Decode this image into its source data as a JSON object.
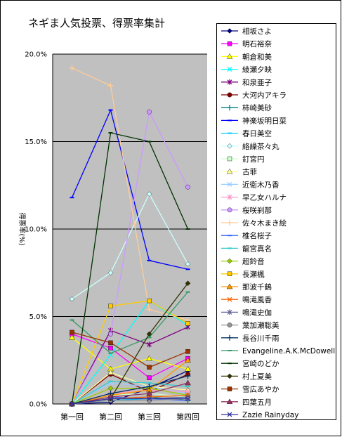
{
  "chart_data": {
    "type": "line",
    "title": "ネギま人気投票、得票率集計",
    "ylabel": "得票率(%)",
    "xlabel": "",
    "categories": [
      "第一回",
      "第二回",
      "第三回",
      "第四回"
    ],
    "ylim": [
      0,
      20
    ],
    "y_ticks": [
      "0.0%",
      "5.0%",
      "10.0%",
      "15.0%",
      "20.0%"
    ],
    "y_tick_values": [
      0,
      5,
      10,
      15,
      20
    ],
    "grid": "horizontal",
    "plot_background": "#c0c0c0",
    "legend_position": "right",
    "series": [
      {
        "name": "相坂さよ",
        "values": [
          0,
          0.1,
          0.9,
          1.9
        ],
        "color": "#000080",
        "marker": "diamond"
      },
      {
        "name": "明石裕奈",
        "values": [
          4.0,
          3.2,
          1.5,
          2.6
        ],
        "color": "#ff00ff",
        "marker": "square"
      },
      {
        "name": "朝倉和美",
        "values": [
          3.8,
          2.0,
          2.6,
          2.0
        ],
        "color": "#ffff00",
        "marker": "triangle"
      },
      {
        "name": "綾瀬夕映",
        "values": [
          0,
          2.8,
          5.9,
          4.5
        ],
        "color": "#00ffff",
        "marker": "x"
      },
      {
        "name": "和泉亜子",
        "values": [
          0,
          4.2,
          3.4,
          4.4
        ],
        "color": "#800080",
        "marker": "star"
      },
      {
        "name": "大河内アキラ",
        "values": [
          0,
          1.7,
          0.7,
          1.7
        ],
        "color": "#800000",
        "marker": "circle"
      },
      {
        "name": "柿崎美砂",
        "values": [
          0,
          0.3,
          0.4,
          0.2
        ],
        "color": "#008080",
        "marker": "plus"
      },
      {
        "name": "神楽坂明日菜",
        "values": [
          11.8,
          16.8,
          8.2,
          7.7
        ],
        "color": "#0000ff",
        "marker": "dash"
      },
      {
        "name": "春日美空",
        "values": [
          0,
          0.2,
          0.3,
          0.3
        ],
        "color": "#00ccff",
        "marker": "dash"
      },
      {
        "name": "絡繰茶々丸",
        "values": [
          6.0,
          7.5,
          12.0,
          8.0
        ],
        "color": "#ccffff",
        "marker": "diamond"
      },
      {
        "name": "釘宮円",
        "values": [
          0,
          0.5,
          0.6,
          0.4
        ],
        "color": "#ccffcc",
        "marker": "square"
      },
      {
        "name": "古菲",
        "values": [
          0,
          1.8,
          1.0,
          0.8
        ],
        "color": "#ffff99",
        "marker": "triangle"
      },
      {
        "name": "近衛木乃香",
        "values": [
          0,
          1.2,
          1.0,
          0.6
        ],
        "color": "#99ccff",
        "marker": "x"
      },
      {
        "name": "早乙女ハルナ",
        "values": [
          0,
          0.6,
          0.8,
          0.7
        ],
        "color": "#ff99cc",
        "marker": "star"
      },
      {
        "name": "桜咲刹那",
        "values": [
          0,
          4.0,
          16.7,
          12.4
        ],
        "color": "#cc99ff",
        "marker": "circle"
      },
      {
        "name": "佐々木まき絵",
        "values": [
          19.2,
          18.2,
          5.4,
          4.8
        ],
        "color": "#ffcc99",
        "marker": "plus"
      },
      {
        "name": "椎名桜子",
        "values": [
          0,
          0.4,
          0.3,
          0.2
        ],
        "color": "#3366ff",
        "marker": "dash"
      },
      {
        "name": "龍宮真名",
        "values": [
          0,
          1.3,
          1.2,
          1.0
        ],
        "color": "#33cccc",
        "marker": "dash"
      },
      {
        "name": "超鈴音",
        "values": [
          0,
          0.9,
          0.9,
          0.5
        ],
        "color": "#99cc00",
        "marker": "diamond"
      },
      {
        "name": "長瀬楓",
        "values": [
          0,
          5.6,
          5.9,
          4.6
        ],
        "color": "#ffcc00",
        "marker": "square"
      },
      {
        "name": "那波千鶴",
        "values": [
          0,
          0.5,
          0.8,
          2.5
        ],
        "color": "#ff9900",
        "marker": "triangle"
      },
      {
        "name": "鳴滝風香",
        "values": [
          0,
          0.3,
          0.4,
          0.5
        ],
        "color": "#ff6600",
        "marker": "x"
      },
      {
        "name": "鳴滝史伽",
        "values": [
          0,
          0.3,
          0.3,
          0.4
        ],
        "color": "#666699",
        "marker": "star"
      },
      {
        "name": "葉加瀬聡美",
        "values": [
          0,
          0.2,
          0.2,
          0.3
        ],
        "color": "#969696",
        "marker": "circle"
      },
      {
        "name": "長谷川千雨",
        "values": [
          0,
          0.6,
          1.0,
          1.6
        ],
        "color": "#003366",
        "marker": "plus"
      },
      {
        "name": "Evangeline.A.K.McDowell",
        "values": [
          4.8,
          2.9,
          3.8,
          6.4
        ],
        "color": "#339966",
        "marker": "dash"
      },
      {
        "name": "宮崎のどか",
        "values": [
          0,
          15.5,
          15.0,
          10.0
        ],
        "color": "#003300",
        "marker": "dash"
      },
      {
        "name": "村上夏美",
        "values": [
          0,
          0.3,
          4.0,
          6.9
        ],
        "color": "#333300",
        "marker": "diamond"
      },
      {
        "name": "雪広あやか",
        "values": [
          4.1,
          3.5,
          2.1,
          3.0
        ],
        "color": "#993300",
        "marker": "square"
      },
      {
        "name": "四葉五月",
        "values": [
          0,
          0.4,
          0.6,
          1.2
        ],
        "color": "#993366",
        "marker": "triangle"
      },
      {
        "name": "Zazie Rainyday",
        "values": [
          0,
          0.3,
          0.3,
          0.3
        ],
        "color": "#333399",
        "marker": "x"
      }
    ]
  }
}
